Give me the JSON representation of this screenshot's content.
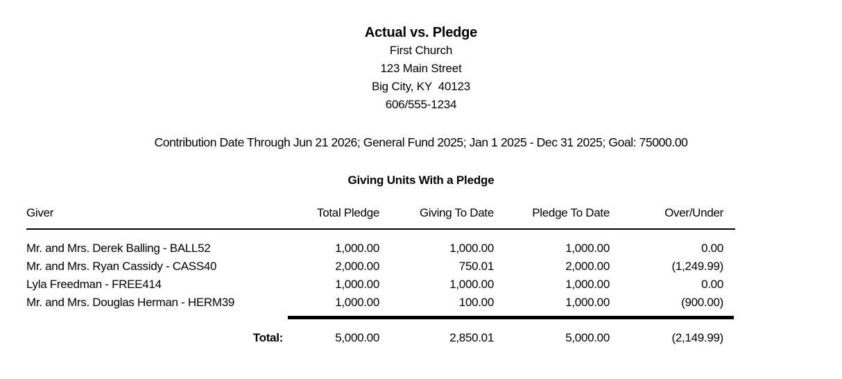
{
  "report": {
    "title": "Actual vs. Pledge",
    "church_name": "First Church",
    "address_line": "123 Main Street",
    "city_line": "Big City, KY  40123",
    "phone": "606/555-1234",
    "criteria": "Contribution Date Through Jun 21 2026; General Fund 2025; Jan 1 2025 - Dec 31 2025; Goal: 75000.00",
    "section_title": "Giving Units With a Pledge"
  },
  "table": {
    "columns": [
      "Giver",
      "Total Pledge",
      "Giving To Date",
      "Pledge To Date",
      "Over/Under"
    ],
    "rows": [
      {
        "giver": "Mr. and Mrs. Derek Balling - BALL52",
        "total_pledge": "1,000.00",
        "giving_to_date": "1,000.00",
        "pledge_to_date": "1,000.00",
        "over_under": "0.00"
      },
      {
        "giver": "Mr. and Mrs. Ryan Cassidy - CASS40",
        "total_pledge": "2,000.00",
        "giving_to_date": "750.01",
        "pledge_to_date": "2,000.00",
        "over_under": "(1,249.99)"
      },
      {
        "giver": "Lyla Freedman - FREE414",
        "total_pledge": "1,000.00",
        "giving_to_date": "1,000.00",
        "pledge_to_date": "1,000.00",
        "over_under": "0.00"
      },
      {
        "giver": "Mr. and Mrs. Douglas Herman - HERM39",
        "total_pledge": "1,000.00",
        "giving_to_date": "100.00",
        "pledge_to_date": "1,000.00",
        "over_under": "(900.00)"
      }
    ],
    "total": {
      "label": "Total:",
      "total_pledge": "5,000.00",
      "giving_to_date": "2,850.01",
      "pledge_to_date": "5,000.00",
      "over_under": "(2,149.99)"
    }
  },
  "colors": {
    "text": "#000000",
    "background": "#ffffff",
    "rule": "#000000"
  }
}
